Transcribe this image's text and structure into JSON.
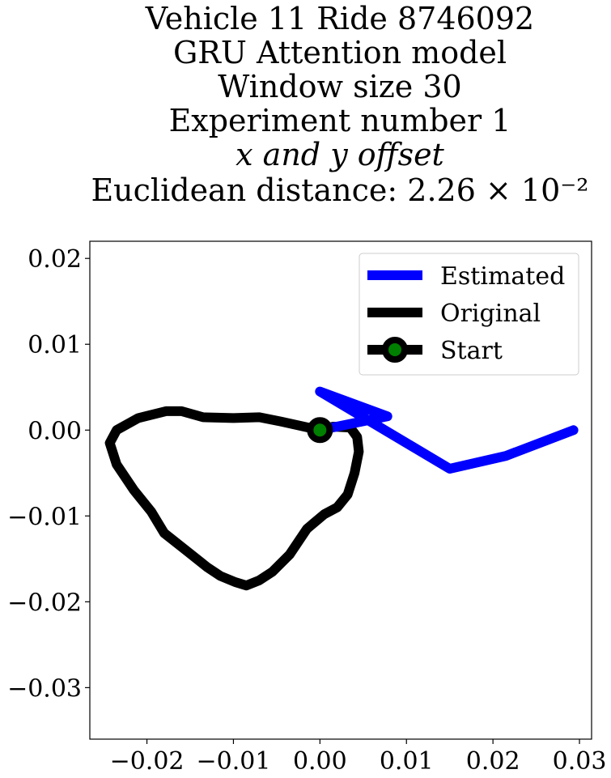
{
  "chart_data": {
    "type": "line",
    "title_lines": [
      "Vehicle 11 Ride 8746092",
      "GRU Attention model",
      "Window size 30",
      "Experiment number 1",
      "x and y offset",
      "Euclidean distance: 2.26 × 10⁻²"
    ],
    "xlim": [
      -0.0266,
      0.0314
    ],
    "ylim": [
      -0.036,
      0.022
    ],
    "xticks": [
      {
        "value": -0.02,
        "label": "−0.02"
      },
      {
        "value": -0.01,
        "label": "−0.01"
      },
      {
        "value": 0.0,
        "label": "0.00"
      },
      {
        "value": 0.01,
        "label": "0.01"
      },
      {
        "value": 0.02,
        "label": "0.02"
      },
      {
        "value": 0.03,
        "label": "0.03"
      }
    ],
    "yticks": [
      {
        "value": 0.02,
        "label": "0.02"
      },
      {
        "value": 0.01,
        "label": "0.01"
      },
      {
        "value": 0.0,
        "label": "0.00"
      },
      {
        "value": -0.01,
        "label": "−0.01"
      },
      {
        "value": -0.02,
        "label": "−0.02"
      },
      {
        "value": -0.03,
        "label": "−0.03"
      }
    ],
    "grid": false,
    "legend_position": "top-right",
    "series": [
      {
        "name": "Estimated",
        "color": "#0000ff",
        "points": [
          [
            0.0,
            0.0
          ],
          [
            0.0078,
            0.0016
          ],
          [
            0.0,
            0.0045
          ],
          [
            0.015,
            -0.0045
          ],
          [
            0.0215,
            -0.003
          ],
          [
            0.0293,
            0.0
          ]
        ]
      },
      {
        "name": "Original",
        "color": "#000000",
        "points": [
          [
            0.0,
            0.0
          ],
          [
            -0.0045,
            0.001
          ],
          [
            -0.007,
            0.0015
          ],
          [
            -0.01,
            0.0014
          ],
          [
            -0.0135,
            0.0015
          ],
          [
            -0.016,
            0.0022
          ],
          [
            -0.0178,
            0.0022
          ],
          [
            -0.021,
            0.0014
          ],
          [
            -0.0235,
            0.0
          ],
          [
            -0.0243,
            -0.0015
          ],
          [
            -0.0235,
            -0.004
          ],
          [
            -0.0215,
            -0.007
          ],
          [
            -0.0195,
            -0.0095
          ],
          [
            -0.018,
            -0.012
          ],
          [
            -0.0155,
            -0.014
          ],
          [
            -0.013,
            -0.016
          ],
          [
            -0.0115,
            -0.017
          ],
          [
            -0.0098,
            -0.0177
          ],
          [
            -0.0085,
            -0.0181
          ],
          [
            -0.007,
            -0.0175
          ],
          [
            -0.0055,
            -0.0165
          ],
          [
            -0.0035,
            -0.0145
          ],
          [
            -0.0015,
            -0.0115
          ],
          [
            0.0005,
            -0.0098
          ],
          [
            0.002,
            -0.009
          ],
          [
            0.0032,
            -0.0075
          ],
          [
            0.004,
            -0.005
          ],
          [
            0.0045,
            -0.0025
          ],
          [
            0.0043,
            -0.0008
          ],
          [
            0.0035,
            0.0003
          ],
          [
            0.0015,
            0.0004
          ],
          [
            0.0,
            0.0
          ]
        ]
      }
    ],
    "start_marker": {
      "name": "Start",
      "x": 0.0,
      "y": 0.0,
      "edge_color": "#000000",
      "face_color": "#008000"
    }
  }
}
